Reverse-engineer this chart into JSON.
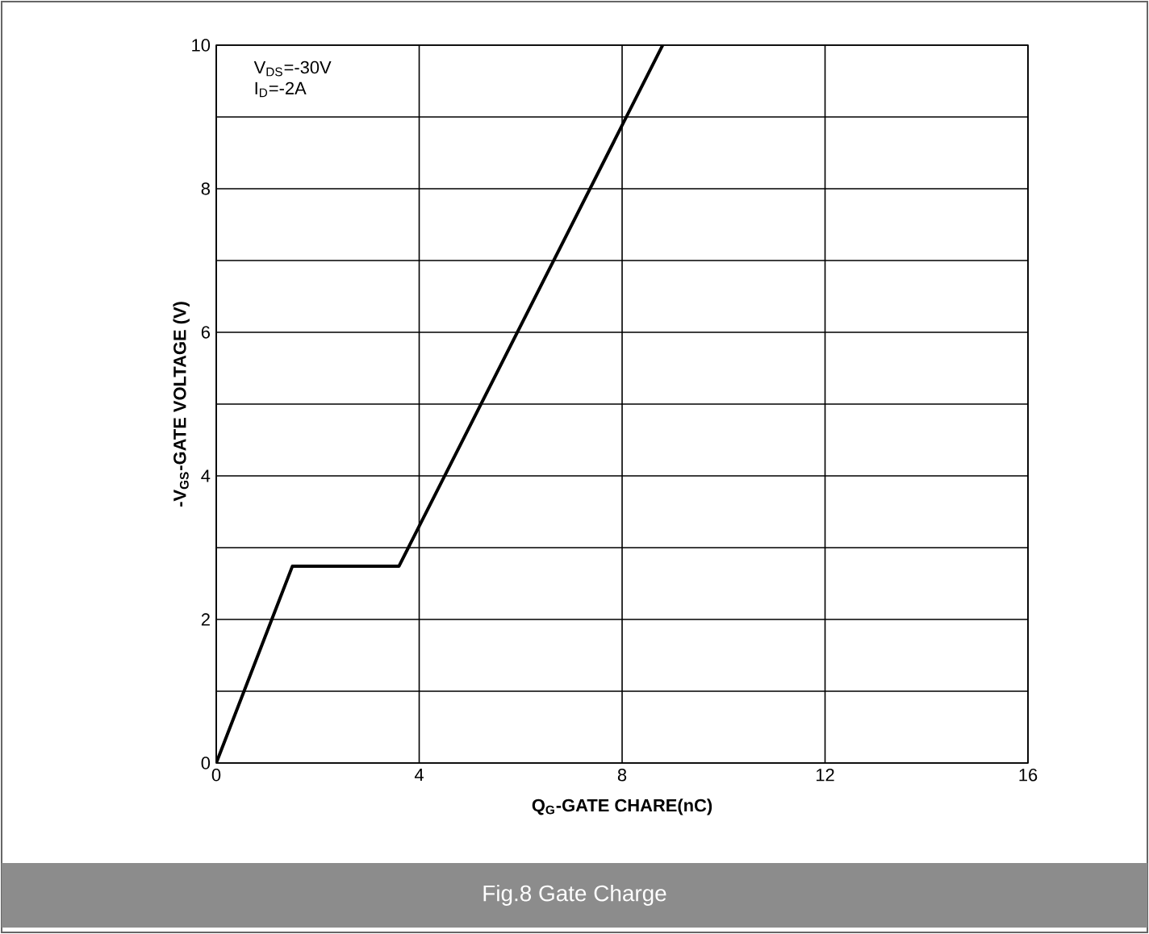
{
  "chart_data": {
    "type": "line",
    "xlabel": "Q$_{G}$-GATE CHARE(nC)",
    "ylabel": "-V$_{GS}$-GATE VOLTAGE (V)",
    "annotations": [
      "V$_{DS}$=-30V",
      "I$_{D}$=-2A",
      "Fig.8 Gate Charge"
    ],
    "series": [
      {
        "color": "#000000",
        "x": [
          0,
          1.5,
          3.6,
          8.8
        ],
        "values": [
          0,
          2.74,
          2.74,
          10
        ]
      }
    ],
    "xlim": [
      0,
      16
    ],
    "xticks": [
      0,
      4,
      8,
      12,
      16
    ],
    "ylim": [
      0,
      10
    ],
    "yticks": [
      0,
      {
        "value": 1,
        "label": null
      },
      2,
      {
        "value": 3,
        "label": null
      },
      4,
      {
        "value": 5,
        "label": null
      },
      6,
      {
        "value": 7,
        "label": null
      },
      8,
      {
        "value": 9,
        "label": null
      },
      10
    ],
    "grid": true,
    "marker": "none",
    "line_style": "solid"
  }
}
